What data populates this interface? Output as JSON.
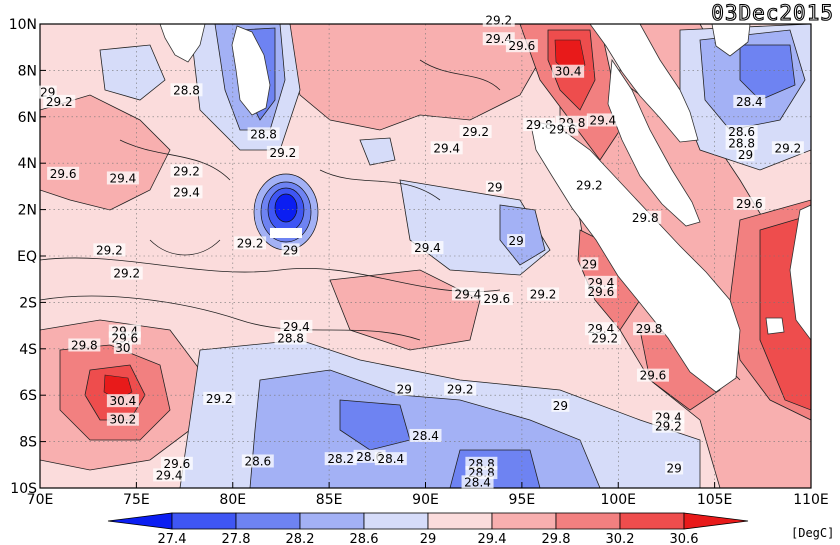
{
  "date_label": "03Dec2015",
  "unit_label": "[DegC]",
  "x_ticks": [
    "70E",
    "75E",
    "80E",
    "85E",
    "90E",
    "95E",
    "100E",
    "105E",
    "110E"
  ],
  "y_ticks": [
    "10N",
    "8N",
    "6N",
    "4N",
    "2N",
    "EQ",
    "2S",
    "4S",
    "6S",
    "8S",
    "10S"
  ],
  "colorbar": {
    "labels": [
      "27.4",
      "27.8",
      "28.2",
      "28.6",
      "29",
      "29.4",
      "29.8",
      "30.2",
      "30.6"
    ],
    "colors": [
      "#0b1ef2",
      "#3f56f4",
      "#6e83f2",
      "#a3b1f5",
      "#d6dcf9",
      "#fbdcdc",
      "#f8afaf",
      "#f28080",
      "#ee4d4d",
      "#e81a1a"
    ]
  },
  "contour_labels": [
    {
      "text": "29.2",
      "lon": 93.8,
      "lat": 10.1
    },
    {
      "text": "29.4",
      "lon": 93.8,
      "lat": 9.3
    },
    {
      "text": "29.6",
      "lon": 95.0,
      "lat": 9.0
    },
    {
      "text": "29",
      "lon": 70.4,
      "lat": 7.0
    },
    {
      "text": "28.8",
      "lon": 77.6,
      "lat": 7.1
    },
    {
      "text": "29.2",
      "lon": 71.0,
      "lat": 6.6
    },
    {
      "text": "30.4",
      "lon": 97.4,
      "lat": 7.9
    },
    {
      "text": "28.4",
      "lon": 106.8,
      "lat": 6.6
    },
    {
      "text": "29.8",
      "lon": 97.6,
      "lat": 5.7
    },
    {
      "text": "28.6",
      "lon": 106.4,
      "lat": 5.3
    },
    {
      "text": "28.8",
      "lon": 106.4,
      "lat": 4.8
    },
    {
      "text": "28.8",
      "lon": 81.6,
      "lat": 5.2
    },
    {
      "text": "29.2",
      "lon": 92.6,
      "lat": 5.3
    },
    {
      "text": "29.8",
      "lon": 95.9,
      "lat": 5.6
    },
    {
      "text": "29.6",
      "lon": 97.1,
      "lat": 5.4
    },
    {
      "text": "29.4",
      "lon": 99.2,
      "lat": 5.8
    },
    {
      "text": "29.2",
      "lon": 108.8,
      "lat": 4.6
    },
    {
      "text": "29.2",
      "lon": 82.6,
      "lat": 4.4
    },
    {
      "text": "29.4",
      "lon": 91.1,
      "lat": 4.6
    },
    {
      "text": "29",
      "lon": 106.6,
      "lat": 4.3
    },
    {
      "text": "29.6",
      "lon": 71.2,
      "lat": 3.5
    },
    {
      "text": "29.2",
      "lon": 77.6,
      "lat": 3.6
    },
    {
      "text": "29.4",
      "lon": 74.3,
      "lat": 3.3
    },
    {
      "text": "29",
      "lon": 93.6,
      "lat": 2.9
    },
    {
      "text": "29.2",
      "lon": 98.5,
      "lat": 3.0
    },
    {
      "text": "29.4",
      "lon": 77.6,
      "lat": 2.7
    },
    {
      "text": "29.6",
      "lon": 106.8,
      "lat": 2.2
    },
    {
      "text": "29.8",
      "lon": 101.4,
      "lat": 1.6
    },
    {
      "text": "29.2",
      "lon": 73.6,
      "lat": 0.2
    },
    {
      "text": "29.2",
      "lon": 80.9,
      "lat": 0.5
    },
    {
      "text": "29",
      "lon": 83.0,
      "lat": 0.2
    },
    {
      "text": "29.4",
      "lon": 90.1,
      "lat": 0.3
    },
    {
      "text": "29",
      "lon": 94.7,
      "lat": 0.6
    },
    {
      "text": "29",
      "lon": 98.5,
      "lat": -0.4
    },
    {
      "text": "29.2",
      "lon": 74.5,
      "lat": -0.8
    },
    {
      "text": "29.4",
      "lon": 99.1,
      "lat": -1.2
    },
    {
      "text": "29.6",
      "lon": 99.1,
      "lat": -1.6
    },
    {
      "text": "29.4",
      "lon": 92.2,
      "lat": -1.7
    },
    {
      "text": "29.6",
      "lon": 93.7,
      "lat": -1.9
    },
    {
      "text": "29.2",
      "lon": 96.1,
      "lat": -1.7
    },
    {
      "text": "29.4",
      "lon": 83.3,
      "lat": -3.1
    },
    {
      "text": "28.8",
      "lon": 83.0,
      "lat": -3.6
    },
    {
      "text": "29.4",
      "lon": 99.1,
      "lat": -3.2
    },
    {
      "text": "29.2",
      "lon": 99.3,
      "lat": -3.6
    },
    {
      "text": "29.8",
      "lon": 101.6,
      "lat": -3.2
    },
    {
      "text": "29.4",
      "lon": 74.4,
      "lat": -3.3
    },
    {
      "text": "29.6",
      "lon": 74.4,
      "lat": -3.6
    },
    {
      "text": "29.8",
      "lon": 72.3,
      "lat": -3.9
    },
    {
      "text": "30",
      "lon": 74.3,
      "lat": -4.0
    },
    {
      "text": "29.6",
      "lon": 101.8,
      "lat": -5.2
    },
    {
      "text": "29",
      "lon": 88.9,
      "lat": -5.8
    },
    {
      "text": "29.2",
      "lon": 91.8,
      "lat": -5.8
    },
    {
      "text": "30.4",
      "lon": 74.3,
      "lat": -6.3
    },
    {
      "text": "29.2",
      "lon": 79.3,
      "lat": -6.2
    },
    {
      "text": "29",
      "lon": 97.0,
      "lat": -6.5
    },
    {
      "text": "30.2",
      "lon": 74.3,
      "lat": -7.1
    },
    {
      "text": "29.4",
      "lon": 102.6,
      "lat": -7.0
    },
    {
      "text": "29.2",
      "lon": 102.6,
      "lat": -7.4
    },
    {
      "text": "28.4",
      "lon": 90.0,
      "lat": -7.8
    },
    {
      "text": "28.6",
      "lon": 81.3,
      "lat": -8.9
    },
    {
      "text": "28.2",
      "lon": 85.6,
      "lat": -8.8
    },
    {
      "text": "28.6",
      "lon": 87.1,
      "lat": -8.7
    },
    {
      "text": "28.4",
      "lon": 88.2,
      "lat": -8.8
    },
    {
      "text": "29.6",
      "lon": 77.1,
      "lat": -9.0
    },
    {
      "text": "29.4",
      "lon": 76.7,
      "lat": -9.5
    },
    {
      "text": "28.8",
      "lon": 92.9,
      "lat": -9.0
    },
    {
      "text": "28.8",
      "lon": 92.9,
      "lat": -9.4
    },
    {
      "text": "28.4",
      "lon": 92.7,
      "lat": -9.8
    },
    {
      "text": "29",
      "lon": 102.9,
      "lat": -9.2
    }
  ]
}
